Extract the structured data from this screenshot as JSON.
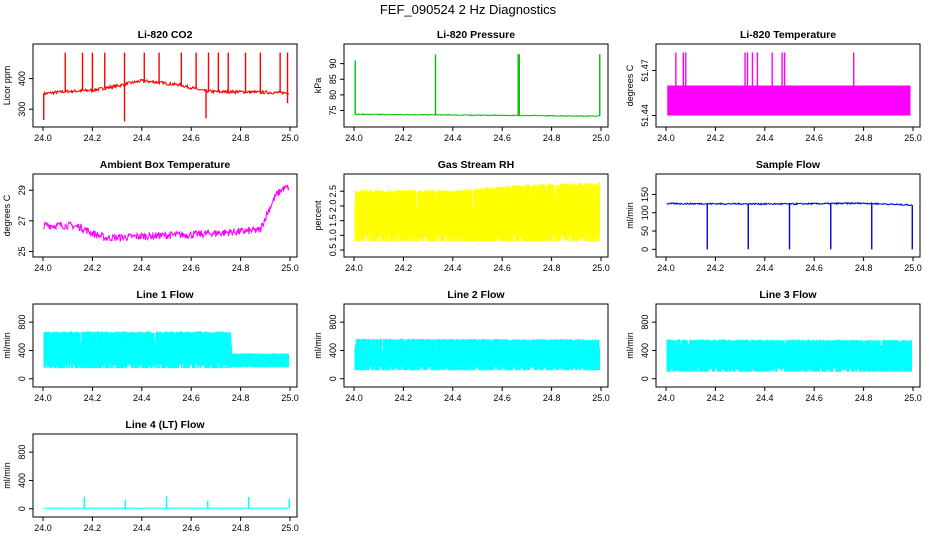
{
  "figure": {
    "title": "FEF_090524  2 Hz Diagnostics"
  },
  "chart_data": [
    {
      "type": "line",
      "title": "Li-820 CO2",
      "ylabel": "Licor ppm",
      "color": "#ff0000",
      "xlim": [
        24.0,
        25.0
      ],
      "ylim": [
        255,
        500
      ],
      "xticks": [
        24.0,
        24.2,
        24.4,
        24.6,
        24.8,
        25.0
      ],
      "xtick_labels": [
        "24.0",
        "24.2",
        "24.4",
        "24.6",
        "24.8",
        "25.0"
      ],
      "yticks": [
        300,
        400
      ],
      "ytick_labels": [
        "300",
        "400"
      ],
      "baseline": [
        [
          24.0,
          350
        ],
        [
          24.05,
          355
        ],
        [
          24.1,
          358
        ],
        [
          24.2,
          362
        ],
        [
          24.3,
          376
        ],
        [
          24.35,
          385
        ],
        [
          24.4,
          393
        ],
        [
          24.45,
          389
        ],
        [
          24.5,
          384
        ],
        [
          24.55,
          380
        ],
        [
          24.6,
          370
        ],
        [
          24.65,
          360
        ],
        [
          24.7,
          357
        ],
        [
          24.8,
          357
        ],
        [
          24.9,
          355
        ],
        [
          25.0,
          353
        ]
      ],
      "noise": 10,
      "spikes": [
        [
          24.09,
          485
        ],
        [
          24.16,
          485
        ],
        [
          24.2,
          485
        ],
        [
          24.25,
          485
        ],
        [
          24.33,
          485
        ],
        [
          24.41,
          485
        ],
        [
          24.47,
          485
        ],
        [
          24.56,
          485
        ],
        [
          24.62,
          485
        ],
        [
          24.67,
          485
        ],
        [
          24.71,
          485
        ],
        [
          24.75,
          485
        ],
        [
          24.82,
          485
        ],
        [
          24.88,
          485
        ],
        [
          24.96,
          485
        ],
        [
          24.99,
          485
        ]
      ],
      "dips": [
        [
          24.003,
          265
        ],
        [
          24.33,
          260
        ],
        [
          24.66,
          270
        ],
        [
          24.99,
          320
        ]
      ]
    },
    {
      "type": "line",
      "title": "Li-820 Pressure",
      "ylabel": "kPa",
      "color": "#00c000",
      "xlim": [
        24.0,
        25.0
      ],
      "ylim": [
        71,
        95
      ],
      "xticks": [
        24.0,
        24.2,
        24.4,
        24.6,
        24.8,
        25.0
      ],
      "xtick_labels": [
        "24.0",
        "24.2",
        "24.4",
        "24.6",
        "24.8",
        "25.0"
      ],
      "yticks": [
        75,
        80,
        85,
        90
      ],
      "ytick_labels": [
        "75",
        "80",
        "85",
        "90"
      ],
      "baseline": [
        [
          24.0,
          73.8
        ],
        [
          25.0,
          73.2
        ]
      ],
      "noise": 0.25,
      "spikes": [
        [
          24.005,
          91
        ],
        [
          24.33,
          93
        ],
        [
          24.665,
          93
        ],
        [
          24.667,
          93
        ],
        [
          24.669,
          93
        ],
        [
          24.995,
          93
        ]
      ],
      "dips": []
    },
    {
      "type": "line",
      "title": "Li-820 Temperature",
      "ylabel": "degrees C",
      "color": "#ff00ff",
      "xlim": [
        24.0,
        25.0
      ],
      "ylim": [
        51.435,
        51.485
      ],
      "xticks": [
        24.0,
        24.2,
        24.4,
        24.6,
        24.8,
        25.0
      ],
      "xtick_labels": [
        "24.0",
        "24.2",
        "24.4",
        "24.6",
        "24.8",
        "25.0"
      ],
      "yticks": [
        51.44,
        51.47
      ],
      "ytick_labels": [
        "51.44",
        "51.47"
      ],
      "band": [
        51.44,
        51.46
      ],
      "spikes": [
        [
          24.04,
          51.482
        ],
        [
          24.07,
          51.482
        ],
        [
          24.08,
          51.482
        ],
        [
          24.32,
          51.482
        ],
        [
          24.33,
          51.482
        ],
        [
          24.35,
          51.482
        ],
        [
          24.37,
          51.482
        ],
        [
          24.43,
          51.482
        ],
        [
          24.47,
          51.482
        ],
        [
          24.48,
          51.482
        ],
        [
          24.76,
          51.482
        ]
      ],
      "dips": []
    },
    {
      "type": "line",
      "title": "Ambient Box Temperature",
      "ylabel": "degrees C",
      "color": "#ff00ff",
      "xlim": [
        24.0,
        25.0
      ],
      "ylim": [
        24.9,
        29.8
      ],
      "xticks": [
        24.0,
        24.2,
        24.4,
        24.6,
        24.8,
        25.0
      ],
      "xtick_labels": [
        "24.0",
        "24.2",
        "24.4",
        "24.6",
        "24.8",
        "25.0"
      ],
      "yticks": [
        25,
        27,
        29
      ],
      "ytick_labels": [
        "25",
        "27",
        "29"
      ],
      "baseline": [
        [
          24.0,
          26.7
        ],
        [
          24.1,
          26.7
        ],
        [
          24.15,
          26.6
        ],
        [
          24.2,
          26.2
        ],
        [
          24.25,
          25.9
        ],
        [
          24.3,
          25.9
        ],
        [
          24.4,
          26.0
        ],
        [
          24.6,
          26.1
        ],
        [
          24.8,
          26.3
        ],
        [
          24.88,
          26.4
        ],
        [
          24.9,
          27.2
        ],
        [
          24.94,
          28.6
        ],
        [
          24.97,
          29.1
        ],
        [
          25.0,
          29.2
        ]
      ],
      "noise": 0.5,
      "spikes": [],
      "dips": []
    },
    {
      "type": "line",
      "title": "Gas Stream RH",
      "ylabel": "percent",
      "color": "#ffff00",
      "xlim": [
        24.0,
        25.0
      ],
      "ylim": [
        0.4,
        2.95
      ],
      "xticks": [
        24.0,
        24.2,
        24.4,
        24.6,
        24.8,
        25.0
      ],
      "xtick_labels": [
        "24.0",
        "24.2",
        "24.4",
        "24.6",
        "24.8",
        "25.0"
      ],
      "yticks": [
        0.5,
        1.0,
        1.5,
        2.0,
        2.5
      ],
      "ytick_labels": [
        "0.5",
        "1.0",
        "1.5",
        "2.0",
        "2.5"
      ],
      "band_low": [
        [
          24.0,
          0.8
        ],
        [
          25.0,
          0.8
        ]
      ],
      "band_high": [
        [
          24.0,
          2.55
        ],
        [
          24.4,
          2.55
        ],
        [
          24.7,
          2.75
        ],
        [
          25.0,
          2.8
        ]
      ],
      "spikes": [],
      "dips": []
    },
    {
      "type": "line",
      "title": "Sample Flow",
      "ylabel": "ml/min",
      "color": "#0000e0",
      "xlim": [
        24.0,
        25.0
      ],
      "ylim": [
        -10,
        195
      ],
      "xticks": [
        24.0,
        24.2,
        24.4,
        24.6,
        24.8,
        25.0
      ],
      "xtick_labels": [
        "24.0",
        "24.2",
        "24.4",
        "24.6",
        "24.8",
        "25.0"
      ],
      "yticks": [
        0,
        50,
        100,
        150
      ],
      "ytick_labels": [
        "0",
        "50",
        "100",
        "150"
      ],
      "baseline": [
        [
          24.0,
          125
        ],
        [
          24.5,
          124
        ],
        [
          24.8,
          126
        ],
        [
          25.0,
          121
        ]
      ],
      "noise": 4,
      "spikes": [],
      "dips": [
        [
          24.167,
          0
        ],
        [
          24.333,
          0
        ],
        [
          24.5,
          0
        ],
        [
          24.667,
          0
        ],
        [
          24.833,
          0
        ],
        [
          24.997,
          0
        ]
      ]
    },
    {
      "type": "line",
      "title": "Line 1 Flow",
      "ylabel": "ml/min",
      "color": "#00ffff",
      "xlim": [
        24.0,
        25.0
      ],
      "ylim": [
        -60,
        1000
      ],
      "xticks": [
        24.0,
        24.2,
        24.4,
        24.6,
        24.8,
        25.0
      ],
      "xtick_labels": [
        "24.0",
        "24.2",
        "24.4",
        "24.6",
        "24.8",
        "25.0"
      ],
      "yticks": [
        0,
        400,
        800
      ],
      "ytick_labels": [
        "0",
        "400",
        "800"
      ],
      "band_low": [
        [
          24.0,
          150
        ],
        [
          24.76,
          150
        ],
        [
          24.765,
          160
        ],
        [
          25.0,
          160
        ]
      ],
      "band_high": [
        [
          24.0,
          670
        ],
        [
          24.76,
          670
        ],
        [
          24.765,
          360
        ],
        [
          25.0,
          360
        ]
      ],
      "spikes": [],
      "dips": []
    },
    {
      "type": "line",
      "title": "Line 2 Flow",
      "ylabel": "ml/min",
      "color": "#00ffff",
      "xlim": [
        24.0,
        25.0
      ],
      "ylim": [
        -60,
        1000
      ],
      "xticks": [
        24.0,
        24.2,
        24.4,
        24.6,
        24.8,
        25.0
      ],
      "xtick_labels": [
        "24.0",
        "24.2",
        "24.4",
        "24.6",
        "24.8",
        "25.0"
      ],
      "yticks": [
        0,
        400,
        800
      ],
      "ytick_labels": [
        "0",
        "400",
        "800"
      ],
      "band_low": [
        [
          24.0,
          120
        ],
        [
          25.0,
          120
        ]
      ],
      "band_high": [
        [
          24.0,
          570
        ],
        [
          25.0,
          560
        ]
      ],
      "spikes": [],
      "dips": []
    },
    {
      "type": "line",
      "title": "Line 3 Flow",
      "ylabel": "ml/min",
      "color": "#00ffff",
      "xlim": [
        24.0,
        25.0
      ],
      "ylim": [
        -60,
        1000
      ],
      "xticks": [
        24.0,
        24.2,
        24.4,
        24.6,
        24.8,
        25.0
      ],
      "xtick_labels": [
        "24.0",
        "24.2",
        "24.4",
        "24.6",
        "24.8",
        "25.0"
      ],
      "yticks": [
        0,
        400,
        800
      ],
      "ytick_labels": [
        "0",
        "400",
        "800"
      ],
      "band_low": [
        [
          24.0,
          100
        ],
        [
          25.0,
          100
        ]
      ],
      "band_high": [
        [
          24.0,
          560
        ],
        [
          25.0,
          550
        ]
      ],
      "spikes": [],
      "dips": []
    },
    {
      "type": "line",
      "title": "Line 4 (LT) Flow",
      "ylabel": "ml/min",
      "color": "#00ffff",
      "xlim": [
        24.0,
        25.0
      ],
      "ylim": [
        -60,
        1000
      ],
      "xticks": [
        24.0,
        24.2,
        24.4,
        24.6,
        24.8,
        25.0
      ],
      "xtick_labels": [
        "24.0",
        "24.2",
        "24.4",
        "24.6",
        "24.8",
        "25.0"
      ],
      "yticks": [
        0,
        400,
        800
      ],
      "ytick_labels": [
        "0",
        "400",
        "800"
      ],
      "baseline": [
        [
          24.0,
          8
        ],
        [
          25.0,
          8
        ]
      ],
      "noise": 4,
      "spikes": [
        [
          24.167,
          170
        ],
        [
          24.333,
          120
        ],
        [
          24.5,
          175
        ],
        [
          24.667,
          110
        ],
        [
          24.833,
          165
        ],
        [
          24.997,
          140
        ]
      ],
      "dips": []
    }
  ]
}
